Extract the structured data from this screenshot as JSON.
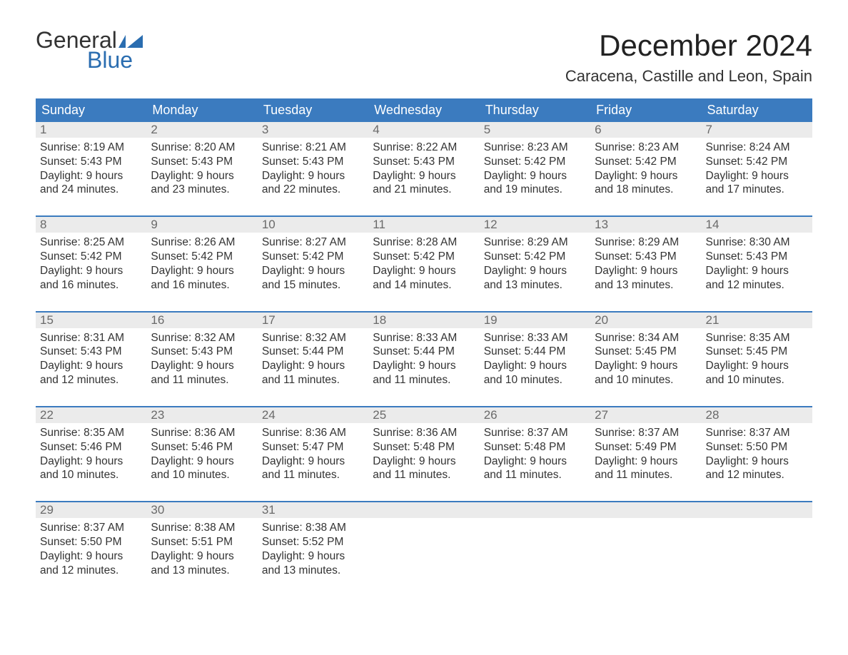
{
  "logo": {
    "word1": "General",
    "word2": "Blue"
  },
  "title": "December 2024",
  "location": "Caracena, Castille and Leon, Spain",
  "colors": {
    "header_bg": "#3b7bbf",
    "header_text": "#ffffff",
    "daynum_bg": "#ebebeb",
    "daynum_text": "#6a6a6a",
    "body_text": "#333333",
    "rule": "#3b7bbf",
    "logo_blue": "#2a6db0"
  },
  "day_headers": [
    "Sunday",
    "Monday",
    "Tuesday",
    "Wednesday",
    "Thursday",
    "Friday",
    "Saturday"
  ],
  "weeks": [
    [
      {
        "n": "1",
        "sunrise": "8:19 AM",
        "sunset": "5:43 PM",
        "daylight": "9 hours and 24 minutes."
      },
      {
        "n": "2",
        "sunrise": "8:20 AM",
        "sunset": "5:43 PM",
        "daylight": "9 hours and 23 minutes."
      },
      {
        "n": "3",
        "sunrise": "8:21 AM",
        "sunset": "5:43 PM",
        "daylight": "9 hours and 22 minutes."
      },
      {
        "n": "4",
        "sunrise": "8:22 AM",
        "sunset": "5:43 PM",
        "daylight": "9 hours and 21 minutes."
      },
      {
        "n": "5",
        "sunrise": "8:23 AM",
        "sunset": "5:42 PM",
        "daylight": "9 hours and 19 minutes."
      },
      {
        "n": "6",
        "sunrise": "8:23 AM",
        "sunset": "5:42 PM",
        "daylight": "9 hours and 18 minutes."
      },
      {
        "n": "7",
        "sunrise": "8:24 AM",
        "sunset": "5:42 PM",
        "daylight": "9 hours and 17 minutes."
      }
    ],
    [
      {
        "n": "8",
        "sunrise": "8:25 AM",
        "sunset": "5:42 PM",
        "daylight": "9 hours and 16 minutes."
      },
      {
        "n": "9",
        "sunrise": "8:26 AM",
        "sunset": "5:42 PM",
        "daylight": "9 hours and 16 minutes."
      },
      {
        "n": "10",
        "sunrise": "8:27 AM",
        "sunset": "5:42 PM",
        "daylight": "9 hours and 15 minutes."
      },
      {
        "n": "11",
        "sunrise": "8:28 AM",
        "sunset": "5:42 PM",
        "daylight": "9 hours and 14 minutes."
      },
      {
        "n": "12",
        "sunrise": "8:29 AM",
        "sunset": "5:42 PM",
        "daylight": "9 hours and 13 minutes."
      },
      {
        "n": "13",
        "sunrise": "8:29 AM",
        "sunset": "5:43 PM",
        "daylight": "9 hours and 13 minutes."
      },
      {
        "n": "14",
        "sunrise": "8:30 AM",
        "sunset": "5:43 PM",
        "daylight": "9 hours and 12 minutes."
      }
    ],
    [
      {
        "n": "15",
        "sunrise": "8:31 AM",
        "sunset": "5:43 PM",
        "daylight": "9 hours and 12 minutes."
      },
      {
        "n": "16",
        "sunrise": "8:32 AM",
        "sunset": "5:43 PM",
        "daylight": "9 hours and 11 minutes."
      },
      {
        "n": "17",
        "sunrise": "8:32 AM",
        "sunset": "5:44 PM",
        "daylight": "9 hours and 11 minutes."
      },
      {
        "n": "18",
        "sunrise": "8:33 AM",
        "sunset": "5:44 PM",
        "daylight": "9 hours and 11 minutes."
      },
      {
        "n": "19",
        "sunrise": "8:33 AM",
        "sunset": "5:44 PM",
        "daylight": "9 hours and 10 minutes."
      },
      {
        "n": "20",
        "sunrise": "8:34 AM",
        "sunset": "5:45 PM",
        "daylight": "9 hours and 10 minutes."
      },
      {
        "n": "21",
        "sunrise": "8:35 AM",
        "sunset": "5:45 PM",
        "daylight": "9 hours and 10 minutes."
      }
    ],
    [
      {
        "n": "22",
        "sunrise": "8:35 AM",
        "sunset": "5:46 PM",
        "daylight": "9 hours and 10 minutes."
      },
      {
        "n": "23",
        "sunrise": "8:36 AM",
        "sunset": "5:46 PM",
        "daylight": "9 hours and 10 minutes."
      },
      {
        "n": "24",
        "sunrise": "8:36 AM",
        "sunset": "5:47 PM",
        "daylight": "9 hours and 11 minutes."
      },
      {
        "n": "25",
        "sunrise": "8:36 AM",
        "sunset": "5:48 PM",
        "daylight": "9 hours and 11 minutes."
      },
      {
        "n": "26",
        "sunrise": "8:37 AM",
        "sunset": "5:48 PM",
        "daylight": "9 hours and 11 minutes."
      },
      {
        "n": "27",
        "sunrise": "8:37 AM",
        "sunset": "5:49 PM",
        "daylight": "9 hours and 11 minutes."
      },
      {
        "n": "28",
        "sunrise": "8:37 AM",
        "sunset": "5:50 PM",
        "daylight": "9 hours and 12 minutes."
      }
    ],
    [
      {
        "n": "29",
        "sunrise": "8:37 AM",
        "sunset": "5:50 PM",
        "daylight": "9 hours and 12 minutes."
      },
      {
        "n": "30",
        "sunrise": "8:38 AM",
        "sunset": "5:51 PM",
        "daylight": "9 hours and 13 minutes."
      },
      {
        "n": "31",
        "sunrise": "8:38 AM",
        "sunset": "5:52 PM",
        "daylight": "9 hours and 13 minutes."
      },
      null,
      null,
      null,
      null
    ]
  ],
  "labels": {
    "sunrise": "Sunrise: ",
    "sunset": "Sunset: ",
    "daylight": "Daylight: "
  }
}
